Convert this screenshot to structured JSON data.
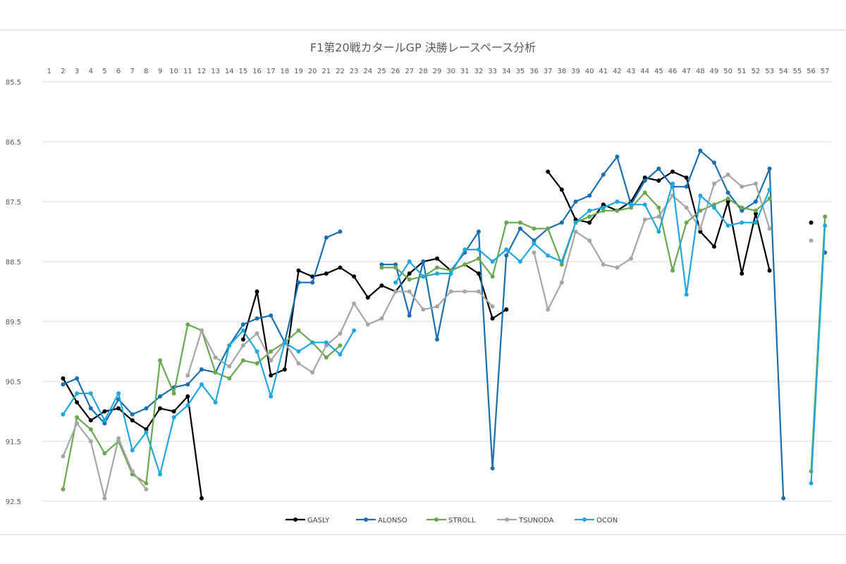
{
  "chart_data": {
    "type": "line",
    "title": "F1第20戦カタールGP 決勝レースペース分析",
    "xlabel": "",
    "ylabel": "",
    "x": [
      1,
      2,
      3,
      4,
      5,
      6,
      7,
      8,
      9,
      10,
      11,
      12,
      13,
      14,
      15,
      16,
      17,
      18,
      19,
      20,
      21,
      22,
      23,
      24,
      25,
      26,
      27,
      28,
      29,
      30,
      31,
      32,
      33,
      34,
      35,
      36,
      37,
      38,
      39,
      40,
      41,
      42,
      43,
      44,
      45,
      46,
      47,
      48,
      49,
      50,
      51,
      52,
      53,
      54,
      55,
      56,
      57
    ],
    "x_axis_position": "top",
    "y_reversed": true,
    "ylim": [
      85.5,
      92.5
    ],
    "yticks": [
      85.5,
      86.5,
      87.5,
      88.5,
      89.5,
      90.5,
      91.5,
      92.5
    ],
    "grid": "horizontal",
    "legend_position": "bottom",
    "series": [
      {
        "name": "GASLY",
        "color": "#000000",
        "values": [
          null,
          90.45,
          90.85,
          91.15,
          91.0,
          90.95,
          91.15,
          91.3,
          90.95,
          91.0,
          90.75,
          92.45,
          null,
          null,
          89.8,
          89.0,
          90.4,
          90.3,
          88.65,
          88.75,
          88.7,
          88.6,
          88.75,
          89.1,
          88.9,
          89.0,
          88.7,
          88.5,
          88.45,
          88.65,
          88.55,
          88.7,
          89.45,
          89.3,
          null,
          null,
          87.0,
          87.3,
          87.8,
          87.85,
          87.55,
          87.65,
          87.5,
          87.1,
          87.15,
          87.0,
          87.1,
          88.0,
          88.25,
          87.5,
          88.7,
          87.7,
          88.65,
          null,
          null,
          87.85,
          null
        ]
      },
      {
        "name": "ALONSO",
        "color": "#1a6fb0",
        "values": [
          null,
          90.55,
          90.45,
          90.95,
          91.2,
          90.8,
          91.05,
          90.95,
          90.75,
          90.6,
          90.55,
          90.3,
          90.35,
          89.9,
          89.55,
          89.45,
          89.4,
          89.85,
          88.85,
          88.85,
          88.1,
          88.0,
          null,
          null,
          88.55,
          88.55,
          89.4,
          88.5,
          89.8,
          88.65,
          88.35,
          88.0,
          91.95,
          88.4,
          87.95,
          88.15,
          87.95,
          87.85,
          87.5,
          87.4,
          87.05,
          86.75,
          87.55,
          87.15,
          86.95,
          87.25,
          87.25,
          86.65,
          86.85,
          87.35,
          87.65,
          87.5,
          86.95,
          92.45,
          null,
          null,
          88.35
        ]
      },
      {
        "name": "STROLL",
        "color": "#6aa84f",
        "values": [
          null,
          92.3,
          91.1,
          91.3,
          91.7,
          91.5,
          92.05,
          92.2,
          90.15,
          90.7,
          89.55,
          89.65,
          90.35,
          90.45,
          90.15,
          90.2,
          90.0,
          89.85,
          89.65,
          89.85,
          90.1,
          89.9,
          null,
          null,
          88.6,
          88.6,
          88.8,
          88.75,
          88.6,
          88.65,
          88.55,
          88.45,
          88.75,
          87.85,
          87.85,
          87.95,
          87.95,
          88.55,
          87.85,
          87.75,
          87.65,
          87.65,
          87.6,
          87.35,
          87.6,
          88.65,
          87.85,
          87.65,
          87.55,
          87.45,
          87.6,
          87.65,
          87.45,
          null,
          null,
          92.0,
          87.75
        ]
      },
      {
        "name": "TSUNODA",
        "color": "#a6a6a6",
        "values": [
          null,
          91.75,
          91.2,
          91.5,
          92.45,
          91.45,
          92.0,
          92.3,
          null,
          null,
          90.4,
          89.65,
          90.1,
          90.25,
          89.9,
          89.7,
          90.15,
          89.85,
          90.2,
          90.35,
          89.9,
          89.7,
          89.2,
          89.55,
          89.45,
          89.0,
          89.0,
          89.3,
          89.25,
          89.0,
          89.0,
          89.0,
          89.25,
          null,
          null,
          88.35,
          89.3,
          88.85,
          88.0,
          88.15,
          88.55,
          88.6,
          88.45,
          87.8,
          87.75,
          87.4,
          87.6,
          87.95,
          87.2,
          87.05,
          87.25,
          87.2,
          87.95,
          null,
          null,
          88.15,
          null
        ]
      },
      {
        "name": "OCON",
        "color": "#1fa8e0",
        "values": [
          null,
          91.05,
          90.7,
          90.7,
          91.15,
          90.7,
          91.65,
          91.35,
          92.05,
          91.1,
          90.9,
          90.55,
          90.85,
          89.9,
          89.65,
          90.0,
          90.75,
          89.85,
          90.0,
          89.85,
          89.85,
          90.05,
          89.65,
          null,
          null,
          88.85,
          88.5,
          88.75,
          88.7,
          88.7,
          88.3,
          88.3,
          88.5,
          88.3,
          88.5,
          88.2,
          88.4,
          88.5,
          87.85,
          87.65,
          87.6,
          87.5,
          87.55,
          87.55,
          88.0,
          87.2,
          89.05,
          87.4,
          87.6,
          87.9,
          87.85,
          87.85,
          87.3,
          null,
          null,
          92.2,
          87.9
        ]
      }
    ]
  }
}
